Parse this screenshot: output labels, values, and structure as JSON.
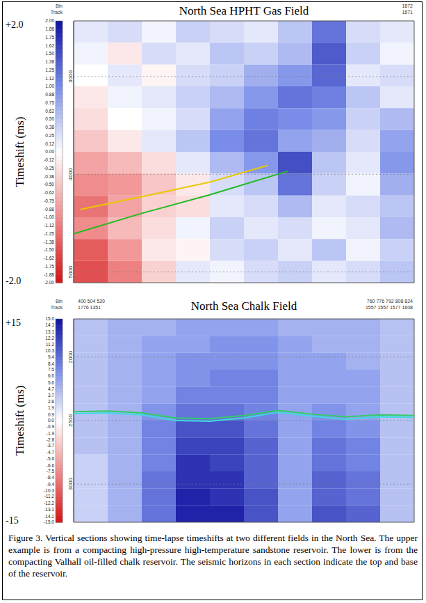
{
  "caption": "Figure 3. Vertical sections showing time-lapse timeshifts at two different fields in the North Sea. The upper example is from a compacting high-pressure high-temperature sandstone reservoir. The lower is from the compacting Valhall oil-filled chalk reservoir. The seismic horizons in each section indicate the top and base of the reservoir.",
  "chart_data": [
    {
      "type": "heatmap",
      "title": "North Sea HPHT Gas Field",
      "header": {
        "left": [
          "Bin",
          "Track"
        ],
        "middle": [],
        "right": [
          "1872",
          "1571"
        ]
      },
      "xlim": [
        0,
        100
      ],
      "ylim": [
        2430,
        5110
      ],
      "yticks": [
        3000,
        4000,
        5000
      ],
      "grid": true,
      "tick_labels": "y",
      "cells": [
        [
          0.2,
          0.3,
          0.1,
          0.4,
          0.3,
          0.2,
          0.5,
          1.2,
          0.3,
          0.2
        ],
        [
          0.1,
          -0.2,
          0.3,
          0.2,
          0.5,
          0.4,
          0.6,
          1.4,
          0.4,
          0.1
        ],
        [
          0.0,
          0.2,
          -0.1,
          0.3,
          0.4,
          0.7,
          0.9,
          1.3,
          0.2,
          0.3
        ],
        [
          -0.2,
          0.1,
          0.2,
          0.4,
          0.6,
          0.9,
          1.2,
          1.1,
          0.5,
          0.2
        ],
        [
          -0.3,
          0.0,
          0.1,
          0.3,
          0.8,
          1.1,
          1.0,
          0.9,
          0.4,
          0.6
        ],
        [
          -0.5,
          -0.2,
          0.2,
          0.5,
          1.0,
          1.2,
          0.8,
          0.7,
          0.3,
          0.8
        ],
        [
          -0.8,
          -0.6,
          -0.3,
          0.2,
          0.6,
          0.9,
          1.5,
          0.5,
          0.2,
          0.9
        ],
        [
          -1.0,
          -0.9,
          -0.5,
          -0.2,
          0.3,
          0.5,
          1.2,
          0.4,
          0.1,
          0.7
        ],
        [
          -1.2,
          -0.8,
          -0.4,
          -0.3,
          0.2,
          0.3,
          0.6,
          0.2,
          0.3,
          0.5
        ],
        [
          -1.0,
          -0.6,
          -0.3,
          0.1,
          0.4,
          0.2,
          0.3,
          0.1,
          0.2,
          0.6
        ],
        [
          -1.4,
          -0.9,
          -0.2,
          -0.1,
          0.3,
          0.4,
          0.2,
          0.5,
          0.1,
          0.4
        ],
        [
          -1.5,
          -1.1,
          -0.4,
          0.2,
          0.1,
          0.3,
          0.4,
          0.2,
          0.3,
          0.5
        ]
      ],
      "colorbar": {
        "label": "Timeshift (ms)",
        "lim": [
          -2,
          2
        ],
        "end_labels": [
          "+2.0",
          "-2.0"
        ],
        "ticks": [
          {
            "value": 2,
            "label": "2.00"
          },
          1.88,
          1.75,
          1.62,
          {
            "value": 1.5,
            "label": "1.50"
          },
          1.38,
          1.25,
          1.12,
          {
            "value": 1,
            "label": "1.00"
          },
          0.88,
          0.75,
          0.62,
          {
            "value": 0.5,
            "label": "0.50"
          },
          0.38,
          0.25,
          0.12,
          {
            "value": 0,
            "label": "0.00"
          },
          -0.12,
          -0.25,
          -0.38,
          {
            "value": -0.5,
            "label": "-0.50"
          },
          -0.62,
          -0.75,
          -0.88,
          {
            "value": -1,
            "label": "-1.00"
          },
          -1.12,
          -1.25,
          -1.38,
          {
            "value": -1.5,
            "label": "-1.50"
          },
          -1.62,
          -1.75,
          -1.88,
          {
            "value": -2,
            "label": "-2.00"
          }
        ]
      },
      "horizons": [
        {
          "color": "#e8c800",
          "x": [
            2,
            20,
            40,
            57
          ],
          "y": [
            4360,
            4230,
            4080,
            3909
          ]
        },
        {
          "color": "#22bb22",
          "x": [
            0,
            20,
            40,
            63
          ],
          "y": [
            4610,
            4400,
            4210,
            3967
          ]
        }
      ]
    },
    {
      "type": "heatmap",
      "title": "North Sea Chalk Field",
      "header": {
        "left": [
          "Bin",
          "Track"
        ],
        "middle": [
          "400 504 520",
          "1776 1351"
        ],
        "right": [
          "760 776 792 808 824",
          "1557 1557 1577 1608"
        ]
      },
      "xlim": [
        0,
        100
      ],
      "ylim": [
        1700,
        3300
      ],
      "yticks": [
        2000,
        2500,
        3000
      ],
      "grid": true,
      "tick_labels": "y",
      "cells": [
        [
          4,
          5,
          5,
          6,
          6,
          6,
          5,
          5,
          5,
          4
        ],
        [
          4,
          5,
          6,
          6,
          7,
          7,
          6,
          5,
          5,
          4
        ],
        [
          4,
          5,
          6,
          7,
          7,
          7,
          6,
          6,
          5,
          4
        ],
        [
          4,
          5,
          6,
          7,
          8,
          8,
          6,
          6,
          6,
          4
        ],
        [
          4,
          5,
          6,
          8,
          8,
          8,
          6,
          6,
          6,
          4
        ],
        [
          4,
          5,
          7,
          9,
          9,
          8,
          6,
          7,
          6,
          4
        ],
        [
          4,
          5,
          8,
          11,
          11,
          9,
          6,
          8,
          7,
          4
        ],
        [
          4,
          5,
          8,
          12,
          12,
          10,
          6,
          9,
          8,
          4
        ],
        [
          3,
          5,
          8,
          13,
          12,
          10,
          6,
          9,
          8,
          4
        ],
        [
          3,
          5,
          9,
          13,
          13,
          10,
          6,
          10,
          9,
          4
        ],
        [
          3,
          5,
          9,
          14,
          13,
          11,
          6,
          10,
          9,
          4
        ],
        [
          3,
          5,
          9,
          14,
          14,
          11,
          6,
          11,
          10,
          4
        ]
      ],
      "colorbar": {
        "label": "Timeshift (ms)",
        "lim": [
          -15,
          15
        ],
        "end_labels": [
          "+15",
          "-15"
        ],
        "ticks": [
          {
            "value": 15,
            "label": "15.0"
          },
          14.1,
          13.1,
          12.2,
          11.2,
          10.3,
          9.4,
          8.4,
          7.5,
          6.6,
          5.6,
          4.7,
          3.7,
          2.8,
          1.9,
          0.9,
          {
            "value": 0,
            "label": "0.0"
          },
          -0.9,
          -1.9,
          -2.8,
          -3.7,
          -4.7,
          -5.6,
          -6.6,
          -7.5,
          -8.4,
          -9.4,
          -10.3,
          -11.2,
          -12.2,
          -13.1,
          -14.1,
          {
            "value": -15,
            "label": "-15.0"
          }
        ]
      },
      "horizons": [
        {
          "color": "#33cc66",
          "x": [
            0,
            10,
            20,
            30,
            40,
            50,
            60,
            70,
            80,
            90,
            100
          ],
          "y": [
            2430,
            2425,
            2440,
            2480,
            2485,
            2460,
            2420,
            2450,
            2470,
            2455,
            2460
          ]
        },
        {
          "color": "#40d8e0",
          "x": [
            0,
            10,
            20,
            30,
            40,
            50,
            60,
            70,
            80,
            90,
            100
          ],
          "y": [
            2445,
            2440,
            2455,
            2500,
            2505,
            2480,
            2435,
            2465,
            2490,
            2470,
            2475
          ]
        }
      ]
    }
  ]
}
